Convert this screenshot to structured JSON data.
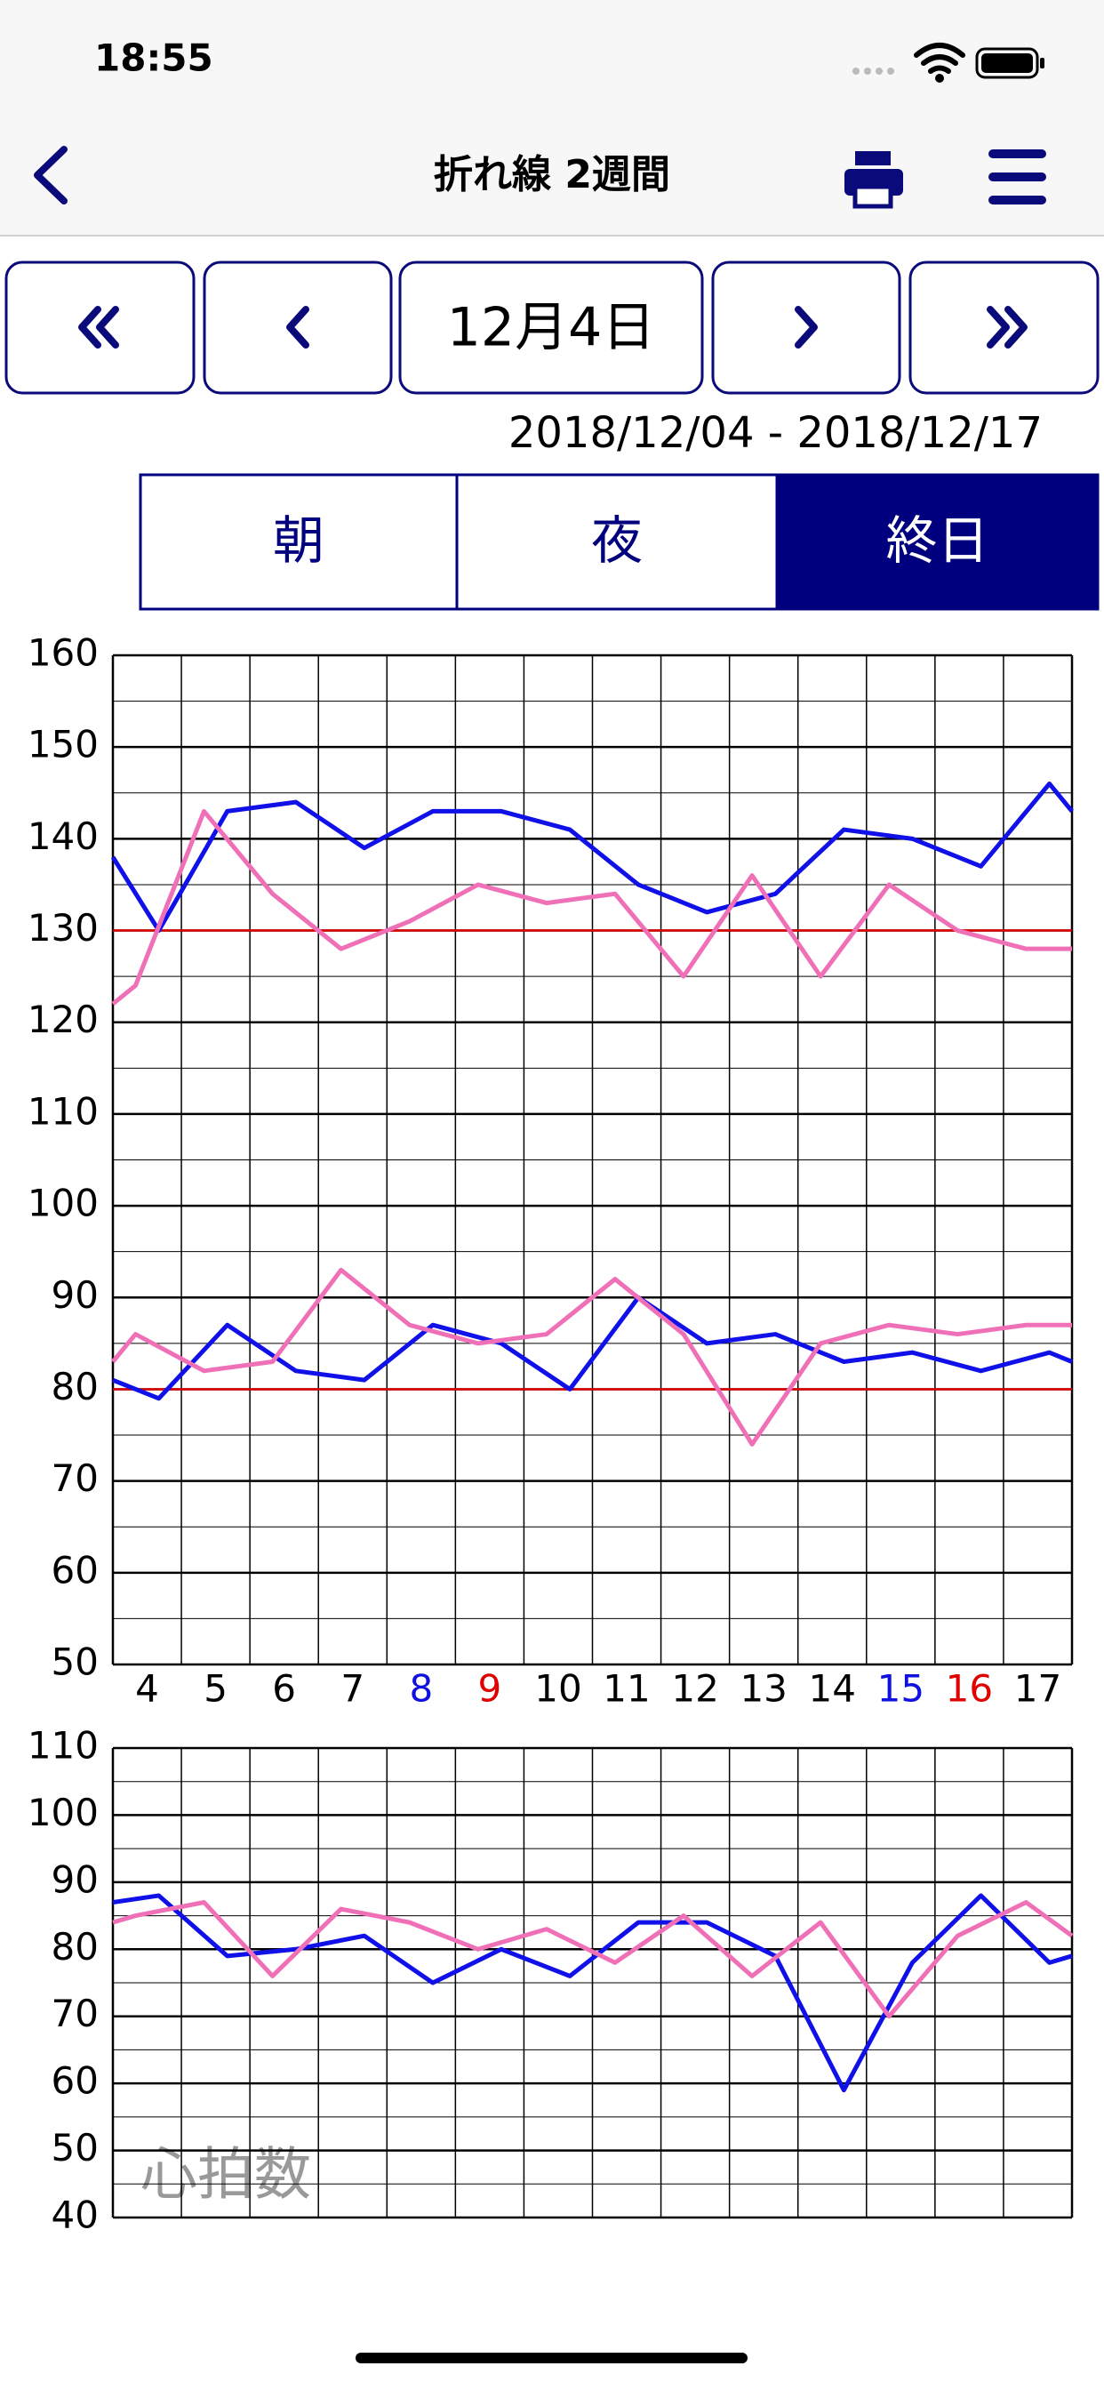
{
  "status_bar": {
    "time": "18:55"
  },
  "nav": {
    "title": "折れ線 2週間"
  },
  "date_button": "12月4日",
  "date_range": "2018/12/04 - 2018/12/17",
  "segments": [
    "朝",
    "夜",
    "終日"
  ],
  "selected_segment": 2,
  "chart_data": [
    {
      "type": "line",
      "xlim": [
        3.5,
        17.5
      ],
      "xticks": [
        4,
        5,
        6,
        7,
        8,
        9,
        10,
        11,
        12,
        13,
        14,
        15,
        16,
        17
      ],
      "xtick_colors": [
        "#000000",
        "#000000",
        "#000000",
        "#000000",
        "#1010e0",
        "#e00000",
        "#000000",
        "#000000",
        "#000000",
        "#000000",
        "#000000",
        "#1010e0",
        "#e00000",
        "#000000"
      ],
      "xtick_labels": true,
      "ylim": [
        50,
        160
      ],
      "yticks": [
        50,
        60,
        70,
        80,
        90,
        100,
        110,
        120,
        130,
        140,
        150,
        160
      ],
      "grid": true,
      "minor_grid": true,
      "reference_lines": [
        {
          "value": 130,
          "color": "#e00000"
        },
        {
          "value": 80,
          "color": "#e00000"
        }
      ],
      "series": [
        {
          "color": "#1010e8",
          "x": [
            3.5,
            4.17,
            5.17,
            6.17,
            7.17,
            8.17,
            9.17,
            10.17,
            11.17,
            12.17,
            13.17,
            14.17,
            15.17,
            16.17,
            17.17,
            17.5
          ],
          "values": [
            138,
            130,
            143,
            144,
            139,
            143,
            143,
            141,
            135,
            132,
            134,
            141,
            140,
            137,
            146,
            143
          ]
        },
        {
          "color": "#f070b8",
          "x": [
            3.5,
            3.83,
            4.83,
            5.83,
            6.83,
            7.83,
            8.83,
            9.83,
            10.83,
            11.83,
            12.83,
            13.83,
            14.83,
            15.83,
            16.83,
            17.5
          ],
          "values": [
            122,
            124,
            143,
            134,
            128,
            131,
            135,
            133,
            134,
            125,
            136,
            125,
            135,
            130,
            128,
            128
          ]
        },
        {
          "color": "#1010e8",
          "x": [
            3.5,
            4.17,
            5.17,
            6.17,
            7.17,
            8.17,
            9.17,
            10.17,
            11.17,
            12.17,
            13.17,
            14.17,
            15.17,
            16.17,
            17.17,
            17.5
          ],
          "values": [
            81,
            79,
            87,
            82,
            81,
            87,
            85,
            80,
            90,
            85,
            86,
            83,
            84,
            82,
            84,
            83
          ]
        },
        {
          "color": "#f070b8",
          "x": [
            3.5,
            3.83,
            4.83,
            5.83,
            6.83,
            7.83,
            8.83,
            9.83,
            10.83,
            11.83,
            12.83,
            13.83,
            14.83,
            15.83,
            16.83,
            17.5
          ],
          "values": [
            83,
            86,
            82,
            83,
            93,
            87,
            85,
            86,
            92,
            86,
            74,
            85,
            87,
            86,
            87,
            87
          ]
        }
      ]
    },
    {
      "type": "line",
      "label": "心拍数",
      "xlim": [
        3.5,
        17.5
      ],
      "xticks": [
        4,
        5,
        6,
        7,
        8,
        9,
        10,
        11,
        12,
        13,
        14,
        15,
        16,
        17
      ],
      "xtick_labels": false,
      "ylim": [
        40,
        110
      ],
      "yticks": [
        40,
        50,
        60,
        70,
        80,
        90,
        100,
        110
      ],
      "grid": true,
      "minor_grid": true,
      "series": [
        {
          "color": "#1010e8",
          "x": [
            3.5,
            4.17,
            5.17,
            6.17,
            7.17,
            8.17,
            9.17,
            10.17,
            11.17,
            12.17,
            13.17,
            14.17,
            15.17,
            16.17,
            17.17,
            17.5
          ],
          "values": [
            87,
            88,
            79,
            80,
            82,
            75,
            80,
            76,
            84,
            84,
            79,
            59,
            78,
            88,
            78,
            79
          ]
        },
        {
          "color": "#f070b8",
          "x": [
            3.5,
            3.83,
            4.83,
            5.83,
            6.83,
            7.83,
            8.83,
            9.83,
            10.83,
            11.83,
            12.83,
            13.83,
            14.83,
            15.83,
            16.83,
            17.5
          ],
          "values": [
            84,
            85,
            87,
            76,
            86,
            84,
            80,
            83,
            78,
            85,
            76,
            84,
            70,
            82,
            87,
            82
          ]
        }
      ]
    }
  ]
}
